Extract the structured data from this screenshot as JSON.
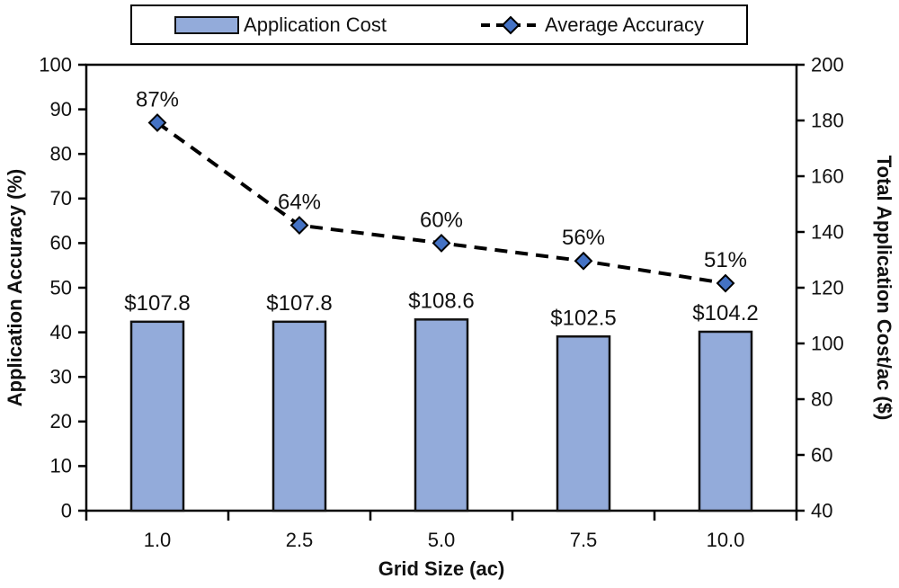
{
  "legend": {
    "items": [
      {
        "label": "Application Cost",
        "swatch": "bar"
      },
      {
        "label": "Average Accuracy",
        "swatch": "dashed-line-diamond"
      }
    ],
    "position": "top-center",
    "border": true
  },
  "colors": {
    "bar_fill": "#93ABDA",
    "bar_border": "#111111",
    "line_color": "#000000",
    "marker_fill": "#4472C4",
    "marker_border": "#000000",
    "axis_color": "#000000",
    "text_color": "#111111",
    "background": "#FFFFFF"
  },
  "chart_data": {
    "type": "bar+line",
    "categories": [
      "1.0",
      "2.5",
      "5.0",
      "7.5",
      "10.0"
    ],
    "series": [
      {
        "name": "Application Cost",
        "type": "bar",
        "axis": "right",
        "values": [
          107.8,
          107.8,
          108.6,
          102.5,
          104.2
        ],
        "point_labels": [
          "$107.8",
          "$107.8",
          "$108.6",
          "$102.5",
          "$104.2"
        ]
      },
      {
        "name": "Average Accuracy",
        "type": "line",
        "axis": "left",
        "line_style": "dashed",
        "marker": "diamond",
        "values": [
          87,
          64,
          60,
          56,
          51
        ],
        "point_labels": [
          "87%",
          "64%",
          "60%",
          "56%",
          "51%"
        ]
      }
    ],
    "x_axis": {
      "title": "Grid Size (ac)",
      "tick_labels": [
        "1.0",
        "2.5",
        "5.0",
        "7.5",
        "10.0"
      ]
    },
    "left_axis": {
      "title": "Application Accuracy (%)",
      "min": 0,
      "max": 100,
      "step": 10
    },
    "right_axis": {
      "title": "Total Application Cost/ac ($)",
      "min": 40,
      "max": 200,
      "step": 20
    },
    "grid": false,
    "plot_border": true,
    "legend_position": "top"
  }
}
